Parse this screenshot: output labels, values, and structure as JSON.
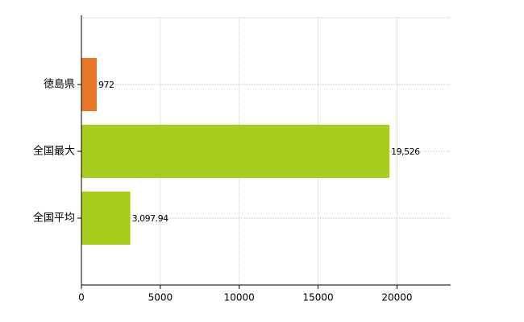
{
  "chart_data": {
    "type": "barh",
    "categories": [
      "徳島県",
      "全国最大",
      "全国平均"
    ],
    "values": [
      972,
      19526,
      3097.94
    ],
    "value_labels": [
      "972",
      "19,526",
      "3,097.94"
    ],
    "colors": [
      "#e8772a",
      "#a6cc1c",
      "#a6cc1c"
    ],
    "xlim": [
      0,
      23400
    ],
    "xticks": [
      0,
      5000,
      10000,
      15000,
      20000
    ],
    "grid": true
  }
}
